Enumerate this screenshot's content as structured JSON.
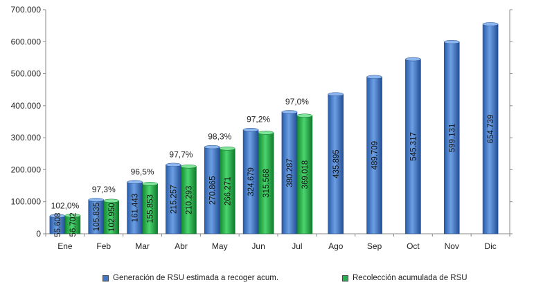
{
  "chart_data": {
    "type": "bar",
    "categories": [
      "Ene",
      "Feb",
      "Mar",
      "Abr",
      "May",
      "Jun",
      "Jul",
      "Ago",
      "Sep",
      "Oct",
      "Nov",
      "Dic"
    ],
    "series": [
      {
        "name": "Generación de RSU estimada a recoger acum.",
        "color": "#3F78C8",
        "values": [
          55608,
          105835,
          161443,
          215257,
          270865,
          324679,
          380287,
          435895,
          489709,
          545317,
          599131,
          654739
        ],
        "labels": [
          "55.608",
          "105.835",
          "161.443",
          "215.257",
          "270.865",
          "324.679",
          "380.287",
          "435.895",
          "489.709",
          "545.317",
          "599.131",
          "654.739"
        ]
      },
      {
        "name": "Recolección acumulada de RSU",
        "color": "#22B14C",
        "values": [
          56702,
          102950,
          155853,
          210293,
          266271,
          315568,
          369018,
          null,
          null,
          null,
          null,
          null
        ],
        "labels": [
          "56.702",
          "102.950",
          "155.853",
          "210.293",
          "266.271",
          "315.568",
          "369.018",
          "",
          "",
          "",
          "",
          ""
        ]
      }
    ],
    "percent_labels": [
      "102,0%",
      "97,3%",
      "96,5%",
      "97,7%",
      "98,3%",
      "97,2%",
      "97,0%",
      "",
      "",
      "",
      "",
      ""
    ],
    "y_ticks": [
      "0",
      "100.000",
      "200.000",
      "300.000",
      "400.000",
      "500.000",
      "600.000",
      "700.000"
    ],
    "ylim": [
      0,
      700000
    ],
    "grid": false,
    "legend_position": "bottom"
  }
}
